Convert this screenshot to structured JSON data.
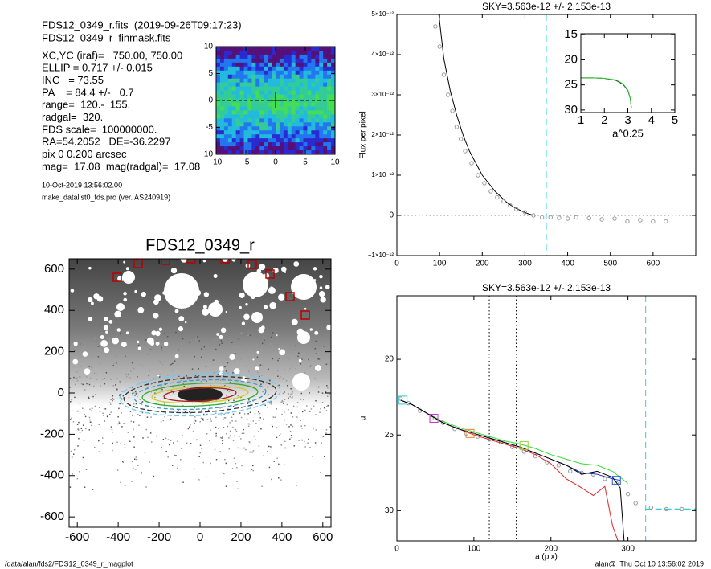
{
  "header": {
    "files": [
      "FDS12_0349_r.fits  (2019-09-26T09:17:23)",
      "FDS12_0349_r_finmask.fits"
    ],
    "params": [
      "XC,YC (iraf)=   750.00, 750.00",
      "ELLIP = 0.717 +/- 0.015",
      "INC   = 73.55",
      "PA    = 84.4 +/-   0.7",
      "range=  120.-  155.",
      "radgal=  320.",
      "FDS scale=  100000000.",
      "RA=54.2052   DE=-36.2297",
      "pix 0 0.200 arcsec",
      "mag=  17.08  mag(radgal)=  17.08"
    ],
    "notes": [
      "10-Oct-2019 13:56:02.00",
      "make_datalist0_fds.pro (ver. AS240919)"
    ]
  },
  "footer": {
    "left": "/data/alan/fds2/FDS12_0349_r_magplot",
    "right": "alan@  Thu Oct 10 13:56:02 2019"
  },
  "chart_data": [
    {
      "type": "image",
      "xlim": [
        -10,
        10
      ],
      "ylim": [
        -10,
        10
      ],
      "xticks": [
        -10,
        -5,
        0,
        5,
        10
      ],
      "yticks": [
        -10,
        -5,
        0,
        5,
        10
      ]
    },
    {
      "type": "line",
      "title": "SKY=3.563e-12 +/- 2.153e-13",
      "ylabel": "Flux per pixel",
      "xlim": [
        0,
        700
      ],
      "ylim": [
        -1e-12,
        5e-12
      ],
      "xticks": [
        0,
        100,
        200,
        300,
        400,
        500,
        600
      ],
      "yticks": [
        {
          "value": -1e-12,
          "label": "−1×10⁻¹²"
        },
        0,
        {
          "value": 1e-12,
          "label": "1×10⁻¹²"
        },
        {
          "value": 2e-12,
          "label": "2×10⁻¹²"
        },
        {
          "value": 3e-12,
          "label": "3×10⁻¹²"
        },
        {
          "value": 4e-12,
          "label": "4×10⁻¹²"
        },
        {
          "value": 5e-12,
          "label": "5×10⁻¹²"
        }
      ],
      "vline": 350,
      "hline": 0,
      "series": [
        {
          "color": "#000000",
          "x": [
            95,
            110,
            125,
            140,
            155,
            170,
            185,
            200,
            215,
            230,
            245,
            260,
            275,
            290,
            305,
            320
          ],
          "values": [
            5.3e-12,
            3.9e-12,
            3.1e-12,
            2.5e-12,
            2e-12,
            1.6e-12,
            1.3e-12,
            1e-12,
            8e-13,
            6e-13,
            4.5e-13,
            3e-13,
            2e-13,
            1.2e-13,
            5e-14,
            0
          ]
        },
        {
          "color": "#999999",
          "marker": "circle",
          "x": [
            90,
            100,
            110,
            120,
            130,
            140,
            150,
            160,
            175,
            190,
            205,
            220,
            235,
            250,
            265,
            280,
            300,
            320,
            340,
            360,
            380,
            400,
            420,
            450,
            480,
            510,
            540,
            570,
            600,
            630
          ],
          "values": [
            4.7e-12,
            4.2e-12,
            3.5e-12,
            3e-12,
            2.6e-12,
            2.2e-12,
            1.9e-12,
            1.6e-12,
            1.3e-12,
            1e-12,
            8e-13,
            6e-13,
            4.5e-13,
            3.5e-13,
            2.5e-13,
            1.5e-13,
            8e-14,
            0,
            -5e-14,
            -5e-14,
            -6e-14,
            -8e-14,
            -5e-14,
            -7e-14,
            -1e-13,
            -8e-14,
            -1.5e-13,
            -1.2e-13,
            -1.5e-13,
            -1.5e-13
          ]
        }
      ]
    },
    {
      "type": "line",
      "xlabel": "a^0.25",
      "xlim": [
        1,
        5
      ],
      "ylim": [
        30.5,
        14.8
      ],
      "xticks": [
        1,
        2,
        3,
        4,
        5
      ],
      "yticks": [
        15,
        20,
        25,
        30
      ],
      "series": [
        {
          "color": "#000000",
          "x": [
            1.0,
            1.5,
            2.0,
            2.5,
            2.8,
            3.0,
            3.1,
            3.15
          ],
          "values": [
            23.6,
            23.6,
            23.7,
            24.1,
            24.9,
            26.1,
            27.6,
            29.6
          ]
        },
        {
          "color": "#33cc33",
          "x": [
            1.0,
            1.5,
            2.0,
            2.5,
            2.8,
            3.0,
            3.1,
            3.15
          ],
          "values": [
            23.6,
            23.6,
            23.7,
            24.0,
            24.8,
            26.0,
            27.5,
            29.5
          ]
        }
      ]
    },
    {
      "type": "image",
      "title": "FDS12_0349_r",
      "xlim": [
        -640,
        640
      ],
      "ylim": [
        -650,
        650
      ],
      "xticks": [
        -600,
        -400,
        -200,
        0,
        200,
        400,
        600
      ],
      "yticks": [
        -600,
        -400,
        -200,
        0,
        200,
        400,
        600
      ]
    },
    {
      "type": "line",
      "title": "SKY=3.563e-12 +/- 2.153e-13",
      "xlabel": "a (pix)",
      "ylabel": "μ",
      "xlim": [
        0,
        388
      ],
      "ylim": [
        32,
        15.8
      ],
      "xticks": [
        0,
        100,
        200,
        300
      ],
      "yticks": [
        20,
        25,
        30
      ],
      "dotted": [
        120,
        155
      ],
      "vline": 323,
      "hline_from_vline": 29.9,
      "series": [
        {
          "color": "#999999",
          "marker": "circle",
          "x": [
            5,
            15,
            30,
            45,
            60,
            75,
            90,
            105,
            120,
            135,
            150,
            165,
            180,
            195,
            210,
            225,
            240,
            255,
            270,
            285,
            300,
            310,
            330,
            350,
            370
          ],
          "values": [
            22.6,
            22.9,
            23.4,
            23.9,
            24.2,
            24.6,
            24.9,
            25.1,
            25.3,
            25.5,
            25.8,
            26.1,
            26.4,
            26.8,
            27.0,
            27.4,
            27.5,
            27.6,
            27.9,
            28.2,
            28.9,
            29.5,
            29.8,
            29.9,
            29.9
          ]
        },
        {
          "color": "#33dd33",
          "x": [
            5,
            20,
            40,
            60,
            80,
            100,
            120,
            140,
            160,
            180,
            200,
            220,
            240,
            260,
            280,
            300
          ],
          "values": [
            22.7,
            23.0,
            23.6,
            24.1,
            24.5,
            24.8,
            25.1,
            25.4,
            25.6,
            25.9,
            26.3,
            26.6,
            26.9,
            27.0,
            27.4,
            28.2
          ]
        },
        {
          "color": "#dd2222",
          "x": [
            5,
            20,
            40,
            60,
            80,
            100,
            120,
            140,
            160,
            180,
            200,
            220,
            240,
            255,
            270,
            280,
            287
          ],
          "values": [
            22.7,
            23.0,
            23.6,
            24.2,
            24.6,
            25.0,
            25.3,
            25.6,
            25.9,
            26.3,
            26.9,
            27.9,
            28.5,
            29.0,
            28.4,
            31.0,
            32.0
          ]
        },
        {
          "color": "#2233cc",
          "x": [
            5,
            20,
            40,
            60,
            80,
            100,
            120,
            140,
            160,
            180,
            200,
            220,
            240,
            260,
            280,
            290
          ],
          "values": [
            22.7,
            23.0,
            23.6,
            24.2,
            24.6,
            24.9,
            25.2,
            25.5,
            25.8,
            26.2,
            26.6,
            27.0,
            27.5,
            27.6,
            27.9,
            28.0
          ]
        },
        {
          "color": "#000000",
          "x": [
            5,
            20,
            40,
            60,
            80,
            100,
            120,
            140,
            160,
            180,
            200,
            220,
            240,
            260,
            280,
            290,
            295
          ],
          "values": [
            22.7,
            23.0,
            23.6,
            24.2,
            24.6,
            24.9,
            25.2,
            25.5,
            25.8,
            26.2,
            26.6,
            27.0,
            27.6,
            27.4,
            27.8,
            28.5,
            32.0
          ]
        },
        {
          "marker": "square",
          "colors": [
            "#33cccc",
            "#cc33cc",
            "#ee8833",
            "#99cc33",
            "#2255dd"
          ],
          "x": [
            8,
            48,
            95,
            165,
            285
          ],
          "values": [
            22.7,
            23.9,
            24.9,
            25.7,
            28.0
          ]
        }
      ]
    }
  ]
}
